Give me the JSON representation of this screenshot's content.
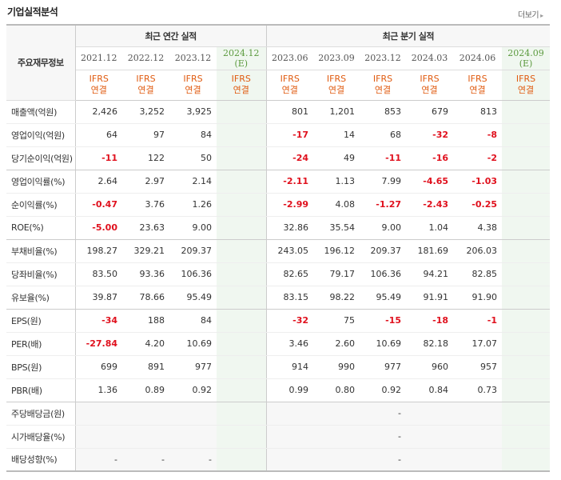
{
  "header": {
    "title": "기업실적분석",
    "more_label": "더보기"
  },
  "table": {
    "label_header": "주요재무정보",
    "annual_group": "최근 연간 실적",
    "quarter_group": "최근 분기 실적",
    "annual_dates": [
      {
        "d": "2021.12",
        "e": ""
      },
      {
        "d": "2022.12",
        "e": ""
      },
      {
        "d": "2023.12",
        "e": ""
      },
      {
        "d": "2024.12",
        "e": "(E)"
      }
    ],
    "quarter_dates": [
      {
        "d": "2023.06",
        "e": ""
      },
      {
        "d": "2023.09",
        "e": ""
      },
      {
        "d": "2023.12",
        "e": ""
      },
      {
        "d": "2024.03",
        "e": ""
      },
      {
        "d": "2024.06",
        "e": ""
      },
      {
        "d": "2024.09",
        "e": "(E)"
      }
    ],
    "ifrs_top": "IFRS",
    "ifrs_bottom": "연결",
    "rows": [
      {
        "label": "매출액(억원)",
        "values": [
          "2,426",
          "3,252",
          "3,925",
          "",
          "801",
          "1,201",
          "853",
          "679",
          "813",
          ""
        ]
      },
      {
        "label": "영업이익(억원)",
        "values": [
          "64",
          "97",
          "84",
          "",
          "-17",
          "14",
          "68",
          "-32",
          "-8",
          ""
        ]
      },
      {
        "label": "당기순이익(억원)",
        "values": [
          "-11",
          "122",
          "50",
          "",
          "-24",
          "49",
          "-11",
          "-16",
          "-2",
          ""
        ]
      },
      {
        "label": "영업이익률(%)",
        "values": [
          "2.64",
          "2.97",
          "2.14",
          "",
          "-2.11",
          "1.13",
          "7.99",
          "-4.65",
          "-1.03",
          ""
        ]
      },
      {
        "label": "순이익률(%)",
        "values": [
          "-0.47",
          "3.76",
          "1.26",
          "",
          "-2.99",
          "4.08",
          "-1.27",
          "-2.43",
          "-0.25",
          ""
        ]
      },
      {
        "label": "ROE(%)",
        "values": [
          "-5.00",
          "23.63",
          "9.00",
          "",
          "32.86",
          "35.54",
          "9.00",
          "1.04",
          "4.38",
          ""
        ]
      },
      {
        "label": "부채비율(%)",
        "values": [
          "198.27",
          "329.21",
          "209.37",
          "",
          "243.05",
          "196.12",
          "209.37",
          "181.69",
          "206.03",
          ""
        ]
      },
      {
        "label": "당좌비율(%)",
        "values": [
          "83.50",
          "93.36",
          "106.36",
          "",
          "82.65",
          "79.17",
          "106.36",
          "94.21",
          "82.85",
          ""
        ]
      },
      {
        "label": "유보율(%)",
        "values": [
          "39.87",
          "78.66",
          "95.49",
          "",
          "83.15",
          "98.22",
          "95.49",
          "91.91",
          "91.90",
          ""
        ]
      },
      {
        "label": "EPS(원)",
        "values": [
          "-34",
          "188",
          "84",
          "",
          "-32",
          "75",
          "-15",
          "-18",
          "-1",
          ""
        ]
      },
      {
        "label": "PER(배)",
        "values": [
          "-27.84",
          "4.20",
          "10.69",
          "",
          "3.46",
          "2.60",
          "10.69",
          "82.18",
          "17.07",
          ""
        ]
      },
      {
        "label": "BPS(원)",
        "values": [
          "699",
          "891",
          "977",
          "",
          "914",
          "990",
          "977",
          "960",
          "957",
          ""
        ]
      },
      {
        "label": "PBR(배)",
        "values": [
          "1.36",
          "0.89",
          "0.92",
          "",
          "0.99",
          "0.80",
          "0.92",
          "0.84",
          "0.73",
          ""
        ]
      },
      {
        "label": "주당배당금(원)",
        "values": [
          "",
          "",
          "",
          "",
          "",
          "",
          "-",
          "",
          "",
          ""
        ]
      },
      {
        "label": "시가배당율(%)",
        "values": [
          "",
          "",
          "",
          "",
          "",
          "",
          "-",
          "",
          "",
          ""
        ]
      },
      {
        "label": "배당성향(%)",
        "values": [
          "-",
          "-",
          "-",
          "",
          "",
          "",
          "-",
          "",
          "",
          ""
        ]
      }
    ]
  },
  "colors": {
    "negative": "#e0101d",
    "ifrs": "#e05b10",
    "estimate_bg": "#f0f7f0",
    "estimate_text": "#5b9a3e"
  }
}
